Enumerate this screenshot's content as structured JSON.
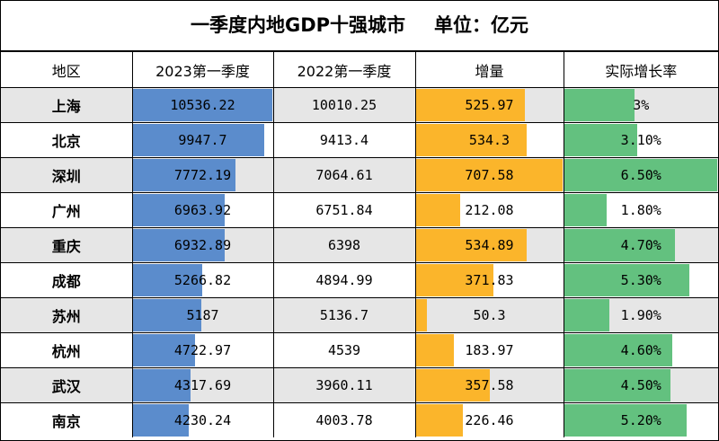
{
  "colors": {
    "gdp2023_bar": "#5b8ccc",
    "increase_bar": "#fbb52b",
    "growth_bar": "#63c17f",
    "shade_row": "#e6e6e6"
  },
  "chart_data": {
    "type": "table",
    "title": "一季度内地GDP十强城市",
    "unit": "单位：亿元",
    "columns": [
      "地区",
      "2023第一季度",
      "2022第一季度",
      "增量",
      "实际增长率"
    ],
    "rows": [
      {
        "region": "上海",
        "gdp2023": "10536.22",
        "gdp2022": "10010.25",
        "increase": "525.97",
        "growth": "3%",
        "growth_value": 3.0
      },
      {
        "region": "北京",
        "gdp2023": "9947.7",
        "gdp2022": "9413.4",
        "increase": "534.3",
        "growth": "3.10%",
        "growth_value": 3.1
      },
      {
        "region": "深圳",
        "gdp2023": "7772.19",
        "gdp2022": "7064.61",
        "increase": "707.58",
        "growth": "6.50%",
        "growth_value": 6.5
      },
      {
        "region": "广州",
        "gdp2023": "6963.92",
        "gdp2022": "6751.84",
        "increase": "212.08",
        "growth": "1.80%",
        "growth_value": 1.8
      },
      {
        "region": "重庆",
        "gdp2023": "6932.89",
        "gdp2022": "6398",
        "increase": "534.89",
        "growth": "4.70%",
        "growth_value": 4.7
      },
      {
        "region": "成都",
        "gdp2023": "5266.82",
        "gdp2022": "4894.99",
        "increase": "371.83",
        "growth": "5.30%",
        "growth_value": 5.3
      },
      {
        "region": "苏州",
        "gdp2023": "5187",
        "gdp2022": "5136.7",
        "increase": "50.3",
        "growth": "1.90%",
        "growth_value": 1.9
      },
      {
        "region": "杭州",
        "gdp2023": "4722.97",
        "gdp2022": "4539",
        "increase": "183.97",
        "growth": "4.60%",
        "growth_value": 4.6
      },
      {
        "region": "武汉",
        "gdp2023": "4317.69",
        "gdp2022": "3960.11",
        "increase": "357.58",
        "growth": "4.50%",
        "growth_value": 4.5
      },
      {
        "region": "南京",
        "gdp2023": "4230.24",
        "gdp2022": "4003.78",
        "increase": "226.46",
        "growth": "5.20%",
        "growth_value": 5.2
      }
    ]
  }
}
